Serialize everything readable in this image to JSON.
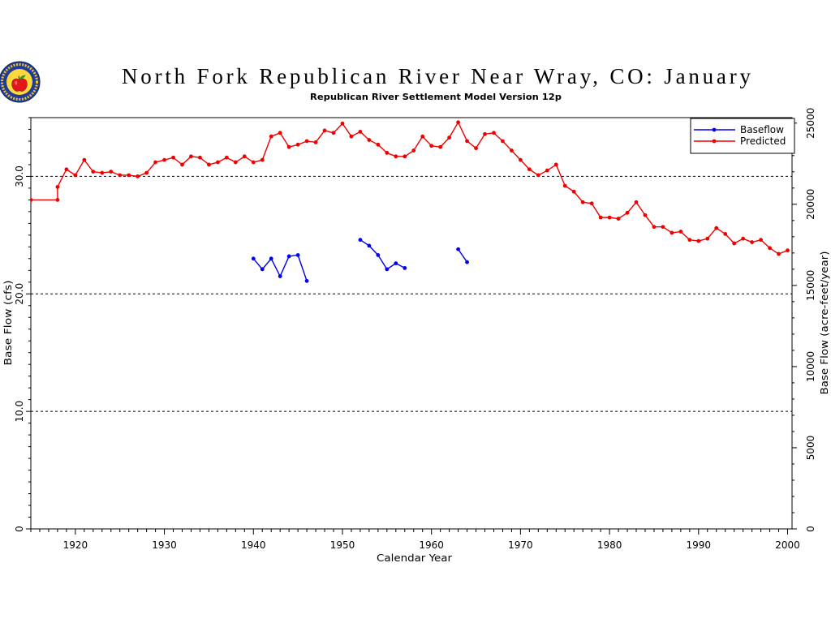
{
  "logo": {
    "icon": "apple-seal-logo"
  },
  "chart_data": {
    "type": "line",
    "title": "North Fork Republican River Near Wray, CO: January",
    "subtitle": "Republican River Settlement Model Version 12p",
    "xlabel": "Calendar Year",
    "ylabel": "Base Flow (cfs)",
    "y2label": "Base Flow (acre-feet/year)",
    "xlim": [
      1915,
      2000.5
    ],
    "ylim": [
      0,
      35
    ],
    "y2lim": [
      0,
      25339
    ],
    "xticks": [
      1920,
      1930,
      1940,
      1950,
      1960,
      1970,
      1980,
      1990,
      2000
    ],
    "xticklabels": [
      "1920",
      "1930",
      "1940",
      "1950",
      "1960",
      "1970",
      "1980",
      "1990",
      "2000"
    ],
    "x_minor_step": 1,
    "yticks": [
      0,
      10,
      20,
      30
    ],
    "yticklabels": [
      "0",
      "10.0",
      "20.0",
      "30.0"
    ],
    "y_minor_step": 1,
    "y2ticks": [
      0,
      5000,
      10000,
      15000,
      20000,
      25000
    ],
    "y2ticklabels": [
      "0",
      "5000",
      "10000",
      "15000",
      "20000",
      "25000"
    ],
    "y2_minor_step": 1000,
    "grid": {
      "y": true,
      "x": false,
      "style": "dashed"
    },
    "legend": {
      "position": "top-right"
    },
    "series": [
      {
        "name": "Baseflow",
        "color": "#0000ee",
        "marker": "circle",
        "points": [
          [
            1940,
            23.0
          ],
          [
            1941,
            22.1
          ],
          [
            1942,
            23.0
          ],
          [
            1943,
            21.5
          ],
          [
            1944,
            23.2
          ],
          [
            1945,
            23.3
          ],
          [
            1946,
            21.1
          ],
          [
            1947,
            null
          ],
          [
            1948,
            null
          ],
          [
            1949,
            null
          ],
          [
            1950,
            null
          ],
          [
            1951,
            null
          ],
          [
            1952,
            24.6
          ],
          [
            1953,
            24.1
          ],
          [
            1954,
            23.3
          ],
          [
            1955,
            22.1
          ],
          [
            1956,
            22.6
          ],
          [
            1957,
            22.2
          ],
          [
            1958,
            null
          ],
          [
            1959,
            null
          ],
          [
            1960,
            null
          ],
          [
            1961,
            null
          ],
          [
            1962,
            null
          ],
          [
            1963,
            23.8
          ],
          [
            1964,
            22.7
          ]
        ]
      },
      {
        "name": "Predicted",
        "color": "#ee0000",
        "marker": "circle",
        "points": [
          [
            1915,
            28.0
          ],
          [
            1918,
            28.0
          ],
          [
            1918,
            29.1
          ],
          [
            1919,
            30.6
          ],
          [
            1920,
            30.1
          ],
          [
            1921,
            31.4
          ],
          [
            1922,
            30.4
          ],
          [
            1923,
            30.3
          ],
          [
            1924,
            30.4
          ],
          [
            1925,
            30.1
          ],
          [
            1926,
            30.1
          ],
          [
            1927,
            30.0
          ],
          [
            1928,
            30.3
          ],
          [
            1929,
            31.2
          ],
          [
            1930,
            31.4
          ],
          [
            1931,
            31.6
          ],
          [
            1932,
            31.0
          ],
          [
            1933,
            31.7
          ],
          [
            1934,
            31.6
          ],
          [
            1935,
            31.0
          ],
          [
            1936,
            31.2
          ],
          [
            1937,
            31.6
          ],
          [
            1938,
            31.2
          ],
          [
            1939,
            31.7
          ],
          [
            1940,
            31.2
          ],
          [
            1941,
            31.4
          ],
          [
            1942,
            33.4
          ],
          [
            1943,
            33.7
          ],
          [
            1944,
            32.5
          ],
          [
            1945,
            32.7
          ],
          [
            1946,
            33.0
          ],
          [
            1947,
            32.9
          ],
          [
            1948,
            33.9
          ],
          [
            1949,
            33.7
          ],
          [
            1950,
            34.5
          ],
          [
            1951,
            33.4
          ],
          [
            1952,
            33.8
          ],
          [
            1953,
            33.1
          ],
          [
            1954,
            32.7
          ],
          [
            1955,
            32.0
          ],
          [
            1956,
            31.7
          ],
          [
            1957,
            31.7
          ],
          [
            1958,
            32.2
          ],
          [
            1959,
            33.4
          ],
          [
            1960,
            32.6
          ],
          [
            1961,
            32.5
          ],
          [
            1962,
            33.3
          ],
          [
            1963,
            34.6
          ],
          [
            1964,
            33.0
          ],
          [
            1965,
            32.4
          ],
          [
            1966,
            33.6
          ],
          [
            1967,
            33.7
          ],
          [
            1968,
            33.0
          ],
          [
            1969,
            32.2
          ],
          [
            1970,
            31.4
          ],
          [
            1971,
            30.6
          ],
          [
            1972,
            30.1
          ],
          [
            1973,
            30.5
          ],
          [
            1974,
            31.0
          ],
          [
            1975,
            29.2
          ],
          [
            1976,
            28.7
          ],
          [
            1977,
            27.8
          ],
          [
            1978,
            27.7
          ],
          [
            1979,
            26.5
          ],
          [
            1980,
            26.5
          ],
          [
            1981,
            26.4
          ],
          [
            1982,
            26.9
          ],
          [
            1983,
            27.8
          ],
          [
            1984,
            26.7
          ],
          [
            1985,
            25.7
          ],
          [
            1986,
            25.7
          ],
          [
            1987,
            25.2
          ],
          [
            1988,
            25.3
          ],
          [
            1989,
            24.6
          ],
          [
            1990,
            24.5
          ],
          [
            1991,
            24.7
          ],
          [
            1992,
            25.6
          ],
          [
            1993,
            25.1
          ],
          [
            1994,
            24.3
          ],
          [
            1995,
            24.7
          ],
          [
            1996,
            24.4
          ],
          [
            1997,
            24.6
          ],
          [
            1998,
            23.9
          ],
          [
            1999,
            23.4
          ],
          [
            2000,
            23.7
          ]
        ]
      }
    ]
  }
}
